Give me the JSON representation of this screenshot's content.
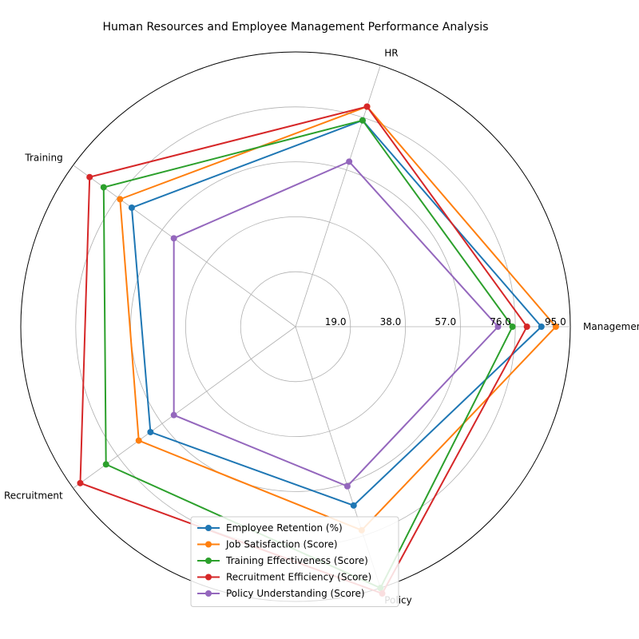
{
  "chart_data": {
    "type": "radar",
    "title": "Human Resources and Employee Management Performance Analysis",
    "categories": [
      "Management",
      "HR",
      "Training",
      "Recruitment",
      "Policy"
    ],
    "radial_ticks": [
      19.0,
      38.0,
      57.0,
      76.0,
      95.0
    ],
    "rlim": [
      0,
      95
    ],
    "grid": true,
    "legend_position": "bottom-center",
    "series": [
      {
        "name": "Employee Retention (%)",
        "color": "#1f77b4",
        "values": [
          85,
          75,
          70,
          62,
          65
        ]
      },
      {
        "name": "Job Satisfaction (Score)",
        "color": "#ff7f0e",
        "values": [
          90,
          80,
          75,
          67,
          74
        ]
      },
      {
        "name": "Training Effectiveness (Score)",
        "color": "#2ca02c",
        "values": [
          75,
          75,
          82,
          81,
          95
        ]
      },
      {
        "name": "Recruitment Efficiency (Score)",
        "color": "#d62728",
        "values": [
          80,
          80,
          88,
          92,
          97
        ]
      },
      {
        "name": "Policy Understanding (Score)",
        "color": "#9467bd",
        "values": [
          70,
          60,
          52,
          52,
          58
        ]
      }
    ]
  }
}
